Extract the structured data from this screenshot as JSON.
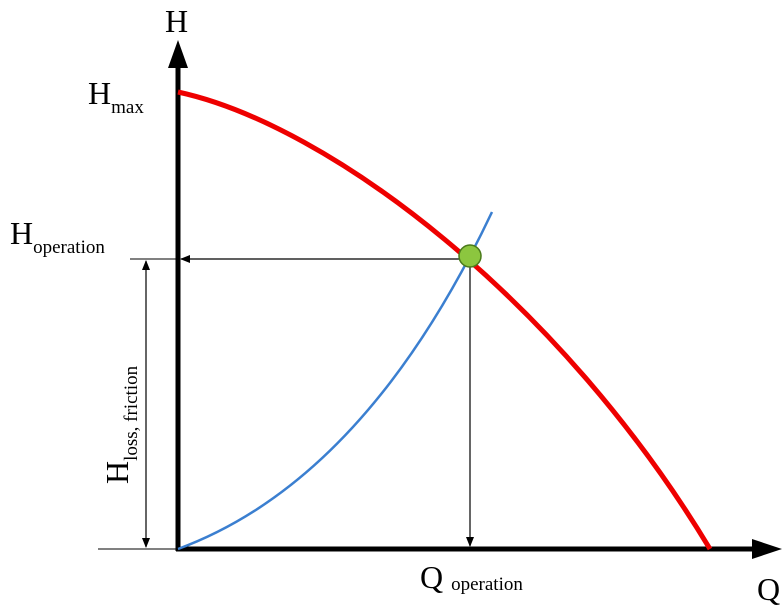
{
  "axes": {
    "y_label": "H",
    "x_label": "Q"
  },
  "labels": {
    "h_max": {
      "main": "H",
      "sub": "max"
    },
    "h_operation": {
      "main": "H",
      "sub": "operation"
    },
    "q_operation": {
      "main": "Q",
      "sub": "operation"
    },
    "h_loss": {
      "main": "H",
      "sub": "loss, friction"
    }
  }
}
